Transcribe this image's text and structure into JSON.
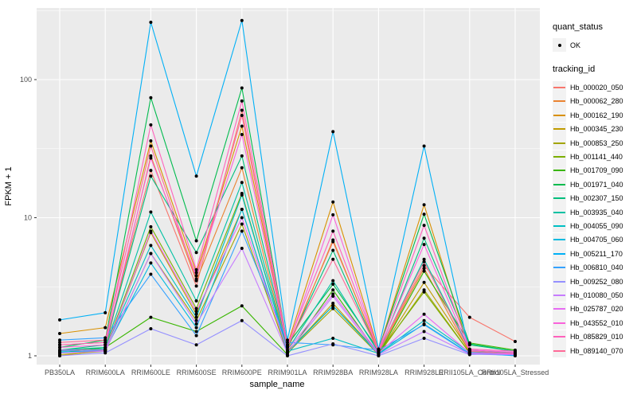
{
  "chart_data": {
    "type": "line",
    "xlabel": "sample_name",
    "ylabel": "FPKM + 1",
    "yscale": "log10",
    "yticks": [
      1,
      10,
      100
    ],
    "ylim": [
      1,
      330
    ],
    "grid": true,
    "panel_bg": "#EBEBEB",
    "grid_color": "#FFFFFF",
    "marker_color": "#000000",
    "axis_text_color": "#4D4D4D",
    "categories": [
      "PB350LA",
      "RRIM600LA",
      "RRIM600LE",
      "RRIM600SE",
      "RRIM600PE",
      "RRIM901LA",
      "RRIM928BA",
      "RRIM928LA",
      "RRIM928LE",
      "RRII105LA_Control",
      "RRII105LA_Stressed"
    ],
    "legend": {
      "position": "right",
      "quant_title": "quant_status",
      "quant_items": [
        {
          "label": "OK",
          "marker": "point"
        }
      ],
      "series_title": "tracking_id"
    },
    "series": [
      {
        "name": "Hb_000020_050",
        "color": "#F8766D",
        "values": [
          1.2,
          1.25,
          22,
          3.2,
          60,
          1.15,
          6.7,
          1.08,
          4.5,
          1.9,
          1.27
        ]
      },
      {
        "name": "Hb_000062_280",
        "color": "#EA8331",
        "values": [
          1.0,
          1.1,
          28,
          3.5,
          23,
          1.1,
          6.9,
          1.05,
          4.3,
          1.05,
          1.02
        ]
      },
      {
        "name": "Hb_000162_190",
        "color": "#D89000",
        "values": [
          1.45,
          1.6,
          36,
          4.0,
          46,
          1.2,
          13.0,
          1.1,
          12.4,
          1.1,
          1.05
        ]
      },
      {
        "name": "Hb_000345_230",
        "color": "#C09B00",
        "values": [
          1.05,
          1.1,
          7.8,
          2.0,
          11.5,
          1.05,
          2.4,
          1.03,
          3.4,
          1.08,
          1.03
        ]
      },
      {
        "name": "Hb_000853_250",
        "color": "#A3A500",
        "values": [
          1.02,
          1.08,
          5.5,
          1.8,
          9.0,
          1.05,
          2.2,
          1.02,
          3.0,
          1.05,
          1.02
        ]
      },
      {
        "name": "Hb_001141_440",
        "color": "#7CAE00",
        "values": [
          1.1,
          1.12,
          8.6,
          2.2,
          15.0,
          1.08,
          2.3,
          1.05,
          2.9,
          1.05,
          1.02
        ]
      },
      {
        "name": "Hb_001709_090",
        "color": "#39B600",
        "values": [
          1.05,
          1.15,
          1.9,
          1.5,
          2.3,
          1.02,
          3.0,
          1.02,
          4.1,
          1.24,
          1.1
        ]
      },
      {
        "name": "Hb_001971_040",
        "color": "#00BB4E",
        "values": [
          1.15,
          1.3,
          74,
          6.8,
          87,
          1.2,
          3.3,
          1.1,
          10.6,
          1.22,
          1.08
        ]
      },
      {
        "name": "Hb_002307_150",
        "color": "#00BF7D",
        "values": [
          1.1,
          1.2,
          20,
          5.6,
          28,
          1.15,
          5.8,
          1.05,
          7.1,
          1.2,
          1.08
        ]
      },
      {
        "name": "Hb_003935_040",
        "color": "#00C1A3",
        "values": [
          1.1,
          1.15,
          11.0,
          2.5,
          18.0,
          1.1,
          3.5,
          1.06,
          5.0,
          1.1,
          1.05
        ]
      },
      {
        "name": "Hb_004055_090",
        "color": "#00BFC4",
        "values": [
          1.08,
          1.12,
          6.3,
          1.9,
          14.6,
          1.08,
          1.34,
          1.04,
          1.8,
          1.06,
          1.03
        ]
      },
      {
        "name": "Hb_004705_060",
        "color": "#00BAE0",
        "values": [
          1.06,
          1.1,
          4.7,
          1.6,
          11.5,
          1.06,
          2.3,
          1.03,
          1.7,
          1.04,
          1.02
        ]
      },
      {
        "name": "Hb_005211_170",
        "color": "#00B0F6",
        "values": [
          1.82,
          2.05,
          260,
          20,
          268,
          1.3,
          42,
          1.12,
          33,
          1.05,
          1.0
        ]
      },
      {
        "name": "Hb_006810_040",
        "color": "#35A2FF",
        "values": [
          1.3,
          1.35,
          3.9,
          1.4,
          8.0,
          1.25,
          1.2,
          1.1,
          1.68,
          1.03,
          1.01
        ]
      },
      {
        "name": "Hb_009252_080",
        "color": "#9590FF",
        "values": [
          1.0,
          1.05,
          1.57,
          1.2,
          1.8,
          1.0,
          1.22,
          1.0,
          1.34,
          1.02,
          1.05
        ]
      },
      {
        "name": "Hb_010080_050",
        "color": "#C77CFF",
        "values": [
          1.05,
          1.08,
          5.5,
          1.7,
          6.0,
          1.05,
          2.7,
          1.02,
          1.5,
          1.03,
          1.02
        ]
      },
      {
        "name": "Hb_025787_020",
        "color": "#E76BF3",
        "values": [
          1.1,
          1.1,
          8.0,
          2.1,
          10.0,
          1.1,
          2.8,
          1.05,
          2.0,
          1.05,
          1.03
        ]
      },
      {
        "name": "Hb_043552_010",
        "color": "#FA62DB",
        "values": [
          1.15,
          1.2,
          27,
          3.8,
          40,
          1.15,
          10.5,
          1.08,
          6.4,
          1.1,
          1.06
        ]
      },
      {
        "name": "Hb_085829_010",
        "color": "#FF62BC",
        "values": [
          1.2,
          1.25,
          47,
          4.2,
          70,
          1.2,
          8.0,
          1.1,
          8.8,
          1.12,
          1.08
        ]
      },
      {
        "name": "Hb_089140_070",
        "color": "#FF6A98",
        "values": [
          1.25,
          1.3,
          33,
          3.6,
          55,
          1.18,
          5.0,
          1.07,
          4.8,
          1.08,
          1.04
        ]
      }
    ]
  }
}
